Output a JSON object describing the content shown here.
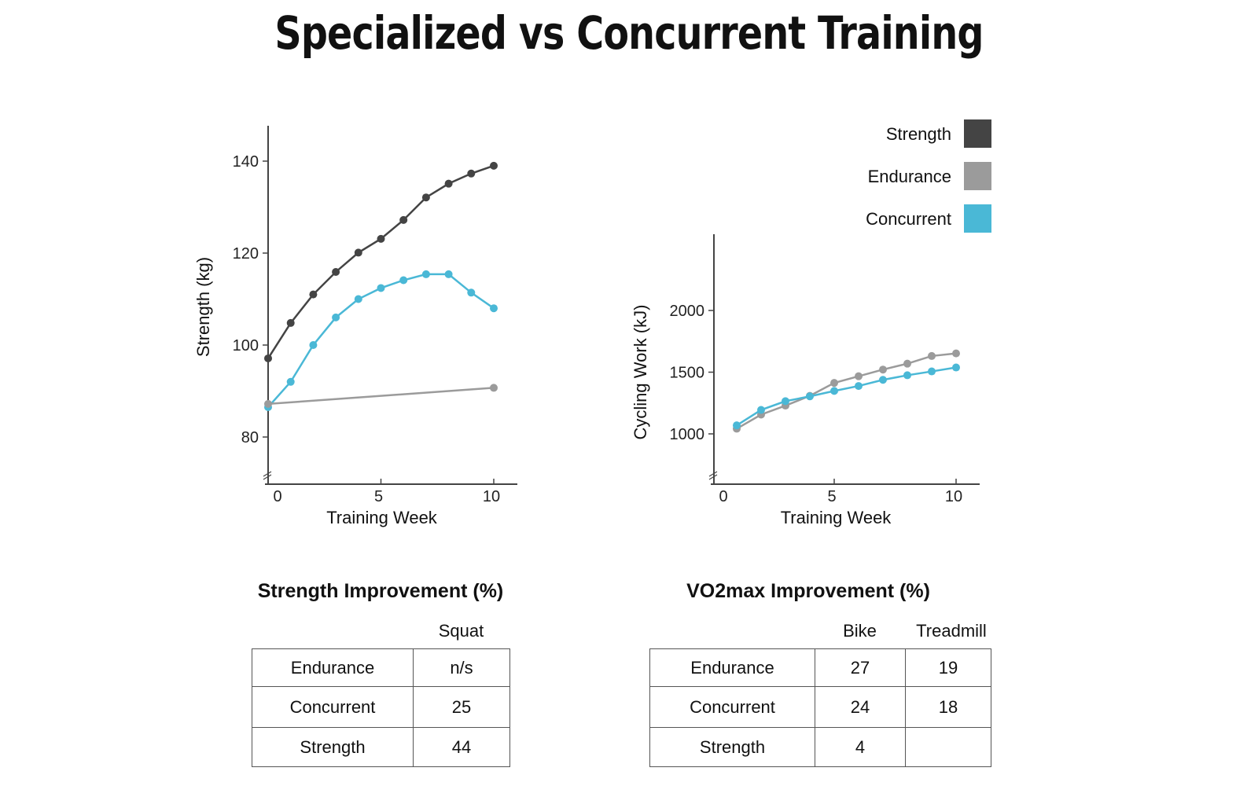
{
  "title": "Specialized vs Concurrent Training",
  "colors": {
    "Strength": "#444444",
    "Endurance": "#9b9b9b",
    "Concurrent": "#4ab8d6"
  },
  "legend": {
    "placement": "top-right",
    "entries": [
      "Strength",
      "Endurance",
      "Concurrent"
    ]
  },
  "chart_data": [
    {
      "type": "line",
      "xlabel": "Training Week",
      "ylabel": "Strength (kg)",
      "xticks": [
        0,
        5,
        10
      ],
      "yticks": [
        80,
        100,
        120,
        140
      ],
      "xlim": [
        0,
        10.9
      ],
      "ylim": [
        70,
        147
      ],
      "axis_break": true,
      "grid": false,
      "series": [
        {
          "name": "Strength",
          "x": [
            0,
            1,
            2,
            3,
            4,
            5,
            6,
            7,
            8,
            9,
            10
          ],
          "y": [
            97.1,
            104.8,
            111,
            115.9,
            120.1,
            123.1,
            127.2,
            132.1,
            135.1,
            137.3,
            139
          ]
        },
        {
          "name": "Concurrent",
          "x": [
            0,
            1,
            2,
            3,
            4,
            5,
            6,
            7,
            8,
            9,
            10
          ],
          "y": [
            86.5,
            92,
            100,
            106,
            110,
            112.4,
            114.1,
            115.4,
            115.4,
            111.4,
            108
          ]
        },
        {
          "name": "Endurance",
          "x": [
            0,
            10
          ],
          "y": [
            87.2,
            90.7
          ]
        }
      ]
    },
    {
      "type": "line",
      "xlabel": "Training Week",
      "ylabel": "Cycling Work (kJ)",
      "xticks": [
        0,
        5,
        10
      ],
      "yticks": [
        1000,
        1500,
        2000
      ],
      "xlim": [
        0,
        11
      ],
      "ylim": [
        600,
        2620
      ],
      "axis_break": true,
      "grid": false,
      "series": [
        {
          "name": "Endurance",
          "x": [
            1,
            2,
            3,
            4,
            5,
            6,
            7,
            8,
            9,
            10
          ],
          "y": [
            1042,
            1156,
            1229,
            1308,
            1413,
            1467,
            1521,
            1569,
            1631,
            1652
          ]
        },
        {
          "name": "Concurrent",
          "x": [
            1,
            2,
            3,
            4,
            5,
            6,
            7,
            8,
            9,
            10
          ],
          "y": [
            1069,
            1194,
            1265,
            1304,
            1348,
            1388,
            1438,
            1475,
            1506,
            1538
          ]
        }
      ]
    }
  ],
  "strength_table": {
    "title": "Strength Improvement (%)",
    "columns": [
      "Squat"
    ],
    "rows": [
      {
        "label": "Endurance",
        "values": [
          "n/s"
        ]
      },
      {
        "label": "Concurrent",
        "values": [
          "25"
        ]
      },
      {
        "label": "Strength",
        "values": [
          "44"
        ]
      }
    ]
  },
  "vo2_table": {
    "title": "VO2max Improvement (%)",
    "columns": [
      "Bike",
      "Treadmill"
    ],
    "rows": [
      {
        "label": "Endurance",
        "values": [
          "27",
          "19"
        ]
      },
      {
        "label": "Concurrent",
        "values": [
          "24",
          "18"
        ]
      },
      {
        "label": "Strength",
        "values": [
          "4",
          ""
        ]
      }
    ]
  }
}
